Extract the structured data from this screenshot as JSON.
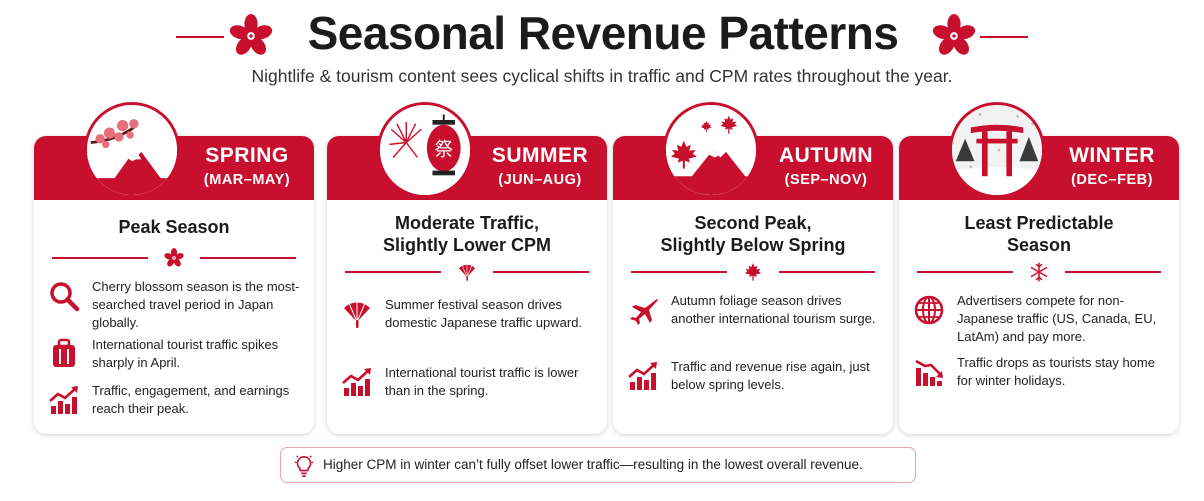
{
  "header": {
    "title": "Seasonal Revenue Patterns",
    "subtitle": "Nightlife & tourism content sees cyclical shifts in traffic and CPM rates throughout the year."
  },
  "colors": {
    "accent": "#c8102e",
    "text": "#1b1b1b",
    "tip_border": "#e8a4a9"
  },
  "seasons": [
    {
      "name": "SPRING",
      "months": "(MAR–MAY)",
      "heading_lines": [
        "Peak Season"
      ],
      "badge_icon": "cherry-blossom-mountain-icon",
      "divider_icon": "sakura-icon",
      "bullets": [
        {
          "icon": "search-icon",
          "text": "Cherry blossom season is the most-searched travel period in Japan globally."
        },
        {
          "icon": "suitcase-icon",
          "text": "International tourist traffic spikes sharply in April."
        },
        {
          "icon": "chart-up-icon",
          "text": "Traffic, engagement, and earnings reach their peak."
        }
      ]
    },
    {
      "name": "SUMMER",
      "months": "(JUN–AUG)",
      "heading_lines": [
        "Moderate Traffic,",
        "Slightly Lower CPM"
      ],
      "badge_icon": "fireworks-lantern-icon",
      "badge_glyph": "祭",
      "divider_icon": "fan-icon",
      "bullets": [
        {
          "icon": "fan-icon",
          "text": "Summer festival season drives domestic Japanese traffic upward."
        },
        {
          "icon": "chart-up-icon",
          "text": "International tourist traffic is lower than in the spring."
        }
      ]
    },
    {
      "name": "AUTUMN",
      "months": "(SEP–NOV)",
      "heading_lines": [
        "Second Peak,",
        "Slightly Below Spring"
      ],
      "badge_icon": "maple-mountain-icon",
      "divider_icon": "maple-leaf-icon",
      "bullets": [
        {
          "icon": "airplane-icon",
          "text": "Autumn foliage season drives another international tourism surge."
        },
        {
          "icon": "chart-up-icon",
          "text": "Traffic and revenue rise again, just below spring levels."
        }
      ]
    },
    {
      "name": "WINTER",
      "months": "(DEC–FEB)",
      "heading_lines": [
        "Least Predictable",
        "Season"
      ],
      "badge_icon": "torii-snow-icon",
      "divider_icon": "snowflake-icon",
      "bullets": [
        {
          "icon": "globe-icon",
          "text": "Advertisers compete for non-Japanese traffic (US, Canada, EU, LatAm) and pay more."
        },
        {
          "icon": "chart-down-icon",
          "text": "Traffic drops as tourists stay home for winter holidays."
        }
      ]
    }
  ],
  "tip": {
    "icon": "lightbulb-icon",
    "text": "Higher CPM in winter can’t fully offset lower traffic—resulting in the lowest overall revenue."
  }
}
